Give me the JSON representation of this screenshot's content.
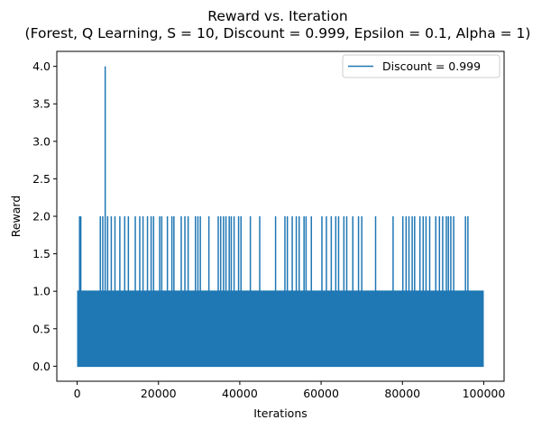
{
  "chart_data": {
    "type": "line",
    "title": "Reward vs. Iteration",
    "subtitle": "(Forest, Q Learning, S = 10, Discount = 0.999, Epsilon = 0.1, Alpha = 1)",
    "xlabel": "Iterations",
    "ylabel": "Reward",
    "xlim": [
      -5000,
      105000
    ],
    "ylim": [
      -0.2,
      4.2
    ],
    "x_ticks": [
      0,
      20000,
      40000,
      60000,
      80000,
      100000
    ],
    "y_ticks": [
      0.0,
      0.5,
      1.0,
      1.5,
      2.0,
      2.5,
      3.0,
      3.5,
      4.0
    ],
    "x_tick_labels": [
      "0",
      "20000",
      "40000",
      "60000",
      "80000",
      "100000"
    ],
    "y_tick_labels": [
      "0.0",
      "0.5",
      "1.0",
      "1.5",
      "2.0",
      "2.5",
      "3.0",
      "3.5",
      "4.0"
    ],
    "grid": false,
    "legend_position": "top-right",
    "series": [
      {
        "name": "Discount = 0.999",
        "color": "#1f77b4",
        "x_range": [
          0,
          100000
        ],
        "baseline_values": [
          0,
          1
        ],
        "spikes": [
          {
            "x": 600,
            "y": 2
          },
          {
            "x": 900,
            "y": 2
          },
          {
            "x": 5700,
            "y": 2
          },
          {
            "x": 6300,
            "y": 2
          },
          {
            "x": 6900,
            "y": 4
          },
          {
            "x": 7500,
            "y": 2
          },
          {
            "x": 8400,
            "y": 2
          },
          {
            "x": 9300,
            "y": 2
          },
          {
            "x": 10500,
            "y": 2
          },
          {
            "x": 11700,
            "y": 2
          },
          {
            "x": 12600,
            "y": 2
          },
          {
            "x": 14300,
            "y": 2
          },
          {
            "x": 15400,
            "y": 2
          },
          {
            "x": 16200,
            "y": 2
          },
          {
            "x": 17300,
            "y": 2
          },
          {
            "x": 18200,
            "y": 2
          },
          {
            "x": 18800,
            "y": 2
          },
          {
            "x": 20300,
            "y": 2
          },
          {
            "x": 20800,
            "y": 2
          },
          {
            "x": 22200,
            "y": 2
          },
          {
            "x": 23300,
            "y": 2
          },
          {
            "x": 23800,
            "y": 2
          },
          {
            "x": 25600,
            "y": 2
          },
          {
            "x": 26500,
            "y": 2
          },
          {
            "x": 27300,
            "y": 2
          },
          {
            "x": 29100,
            "y": 2
          },
          {
            "x": 29700,
            "y": 2
          },
          {
            "x": 30300,
            "y": 2
          },
          {
            "x": 32400,
            "y": 2
          },
          {
            "x": 34700,
            "y": 2
          },
          {
            "x": 35300,
            "y": 2
          },
          {
            "x": 36000,
            "y": 2
          },
          {
            "x": 36600,
            "y": 2
          },
          {
            "x": 37400,
            "y": 2
          },
          {
            "x": 37900,
            "y": 2
          },
          {
            "x": 38600,
            "y": 2
          },
          {
            "x": 39700,
            "y": 2
          },
          {
            "x": 40300,
            "y": 2
          },
          {
            "x": 42600,
            "y": 2
          },
          {
            "x": 44900,
            "y": 2
          },
          {
            "x": 48800,
            "y": 2
          },
          {
            "x": 51100,
            "y": 2
          },
          {
            "x": 51700,
            "y": 2
          },
          {
            "x": 52900,
            "y": 2
          },
          {
            "x": 53900,
            "y": 2
          },
          {
            "x": 54600,
            "y": 2
          },
          {
            "x": 55800,
            "y": 2
          },
          {
            "x": 56300,
            "y": 2
          },
          {
            "x": 57600,
            "y": 2
          },
          {
            "x": 60200,
            "y": 2
          },
          {
            "x": 61300,
            "y": 2
          },
          {
            "x": 62500,
            "y": 2
          },
          {
            "x": 63600,
            "y": 2
          },
          {
            "x": 64300,
            "y": 2
          },
          {
            "x": 65600,
            "y": 2
          },
          {
            "x": 66300,
            "y": 2
          },
          {
            "x": 67800,
            "y": 2
          },
          {
            "x": 69200,
            "y": 2
          },
          {
            "x": 70000,
            "y": 2
          },
          {
            "x": 73400,
            "y": 2
          },
          {
            "x": 77700,
            "y": 2
          },
          {
            "x": 80100,
            "y": 2
          },
          {
            "x": 80900,
            "y": 2
          },
          {
            "x": 81600,
            "y": 2
          },
          {
            "x": 82400,
            "y": 2
          },
          {
            "x": 83000,
            "y": 2
          },
          {
            "x": 84300,
            "y": 2
          },
          {
            "x": 85100,
            "y": 2
          },
          {
            "x": 85800,
            "y": 2
          },
          {
            "x": 86700,
            "y": 2
          },
          {
            "x": 88200,
            "y": 2
          },
          {
            "x": 89100,
            "y": 2
          },
          {
            "x": 89900,
            "y": 2
          },
          {
            "x": 90800,
            "y": 2
          },
          {
            "x": 91300,
            "y": 2
          },
          {
            "x": 91900,
            "y": 2
          },
          {
            "x": 92600,
            "y": 2
          },
          {
            "x": 95500,
            "y": 2
          },
          {
            "x": 96100,
            "y": 2
          }
        ]
      }
    ]
  }
}
